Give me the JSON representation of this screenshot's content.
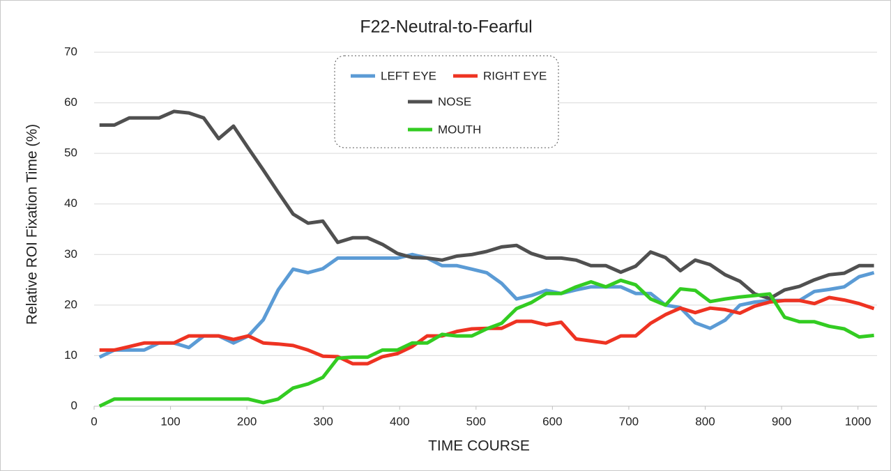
{
  "chart_data": {
    "type": "line",
    "title": "F22-Neutral-to-Fearful",
    "x_label": "TIME  COURSE",
    "y_label": "Relative  ROI  Fixation  Time  (%)",
    "x": [
      7,
      26.5,
      46,
      65.5,
      85,
      104.5,
      124,
      143.5,
      163,
      182.5,
      202,
      221.5,
      241,
      260.5,
      280,
      299.5,
      319,
      338.5,
      358,
      377.5,
      397,
      416.5,
      436,
      455.5,
      475,
      494.5,
      514,
      533.5,
      553,
      572.5,
      592,
      611.5,
      631,
      650.5,
      670,
      689.5,
      709,
      728.5,
      748,
      767.5,
      787,
      806.5,
      826,
      845.5,
      865,
      884.5,
      904,
      923.5,
      943,
      962.5,
      982,
      1001.5,
      1021
    ],
    "series": [
      {
        "name": "LEFT EYE",
        "color": "#5b9bd5",
        "values": [
          9.7,
          11.1,
          11.1,
          11.1,
          12.5,
          12.5,
          11.6,
          13.9,
          13.9,
          12.5,
          13.9,
          17.1,
          23,
          27.1,
          26.4,
          27.2,
          29.3,
          29.3,
          29.3,
          29.3,
          29.3,
          30,
          29.3,
          27.8,
          27.8,
          27.1,
          26.4,
          24.3,
          21.2,
          21.9,
          22.9,
          22.3,
          23,
          23.6,
          23.6,
          23.6,
          22.3,
          22.3,
          20,
          19.5,
          16.5,
          15.4,
          17,
          20,
          20.6,
          20.9,
          20.9,
          20.9,
          22.7,
          23.1,
          23.6,
          25.6,
          26.4
        ]
      },
      {
        "name": "RIGHT EYE",
        "color": "#ee3322",
        "values": [
          11.1,
          11.1,
          11.8,
          12.5,
          12.5,
          12.5,
          13.9,
          13.9,
          13.9,
          13.2,
          13.9,
          12.5,
          12.3,
          12,
          11.1,
          9.9,
          9.8,
          8.4,
          8.4,
          9.8,
          10.4,
          11.8,
          13.9,
          13.9,
          14.8,
          15.3,
          15.4,
          15.4,
          16.8,
          16.8,
          16.1,
          16.6,
          13.3,
          12.9,
          12.5,
          13.9,
          13.9,
          16.4,
          18.1,
          19.4,
          18.5,
          19.4,
          19.1,
          18.4,
          19.8,
          20.6,
          20.9,
          20.9,
          20.3,
          21.5,
          21,
          20.3,
          19.3
        ]
      },
      {
        "name": "NOSE",
        "color": "#505050",
        "values": [
          55.6,
          55.6,
          57,
          57,
          57,
          58.3,
          58,
          57,
          52.9,
          55.4,
          51,
          46.7,
          42.3,
          38,
          36.2,
          36.6,
          32.4,
          33.3,
          33.3,
          32,
          30.2,
          29.4,
          29.3,
          28.9,
          29.7,
          30,
          30.6,
          31.5,
          31.8,
          30.2,
          29.3,
          29.3,
          28.9,
          27.8,
          27.8,
          26.5,
          27.7,
          30.5,
          29.4,
          26.8,
          28.9,
          28,
          26,
          24.7,
          22.2,
          21.3,
          23,
          23.7,
          25,
          26,
          26.3,
          27.8,
          27.8
        ]
      },
      {
        "name": "MOUTH",
        "color": "#33cc22",
        "values": [
          0,
          1.4,
          1.4,
          1.4,
          1.4,
          1.4,
          1.4,
          1.4,
          1.4,
          1.4,
          1.4,
          0.7,
          1.4,
          3.6,
          4.4,
          5.7,
          9.5,
          9.7,
          9.7,
          11.1,
          11.1,
          12.5,
          12.5,
          14.2,
          13.9,
          13.9,
          15.3,
          16.4,
          19.3,
          20.5,
          22.3,
          22.3,
          23.6,
          24.6,
          23.6,
          24.9,
          24,
          21.2,
          20,
          23.2,
          22.9,
          20.7,
          21.2,
          21.6,
          21.9,
          22.2,
          17.6,
          16.7,
          16.7,
          15.8,
          15.3,
          13.7,
          14
        ]
      }
    ],
    "xlim": [
      0,
      1025
    ],
    "xticks": [
      0,
      100,
      200,
      300,
      400,
      500,
      600,
      700,
      800,
      900,
      1000
    ],
    "ylim": [
      0,
      70
    ],
    "yticks": [
      0,
      10,
      20,
      30,
      40,
      50,
      60,
      70
    ],
    "grid": true
  }
}
